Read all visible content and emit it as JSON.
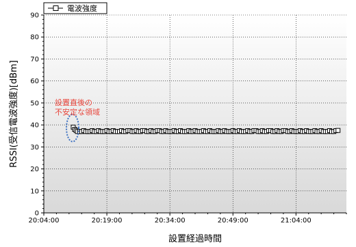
{
  "chart_data": {
    "type": "scatter",
    "title": "",
    "xlabel": "設置経過時間",
    "ylabel": "RSSI(受信電波強度)[dBm]",
    "x_start": "20:04:00",
    "x_end": "21:16:00",
    "xticks": [
      "20:04:00",
      "20:19:00",
      "20:34:00",
      "20:49:00",
      "21:04:00"
    ],
    "ylim": [
      0,
      90
    ],
    "yticks": [
      0,
      10,
      20,
      30,
      40,
      50,
      60,
      70,
      80,
      90
    ],
    "grid": true,
    "legend_position": "top-left",
    "series": [
      {
        "name": "電波強度",
        "marker": "square-open",
        "color": "#000000",
        "x": [
          "20:11:00",
          "20:11:20",
          "20:11:40",
          "20:12:00",
          "21:14:00"
        ],
        "y": [
          39,
          38,
          37.5,
          37,
          37.5
        ],
        "steady_value": 37
      }
    ],
    "annotation": {
      "lines": [
        "設置直後の",
        "不安定な領域"
      ],
      "color": "#e8463c",
      "ellipse_color": "#3a6fc0"
    }
  }
}
